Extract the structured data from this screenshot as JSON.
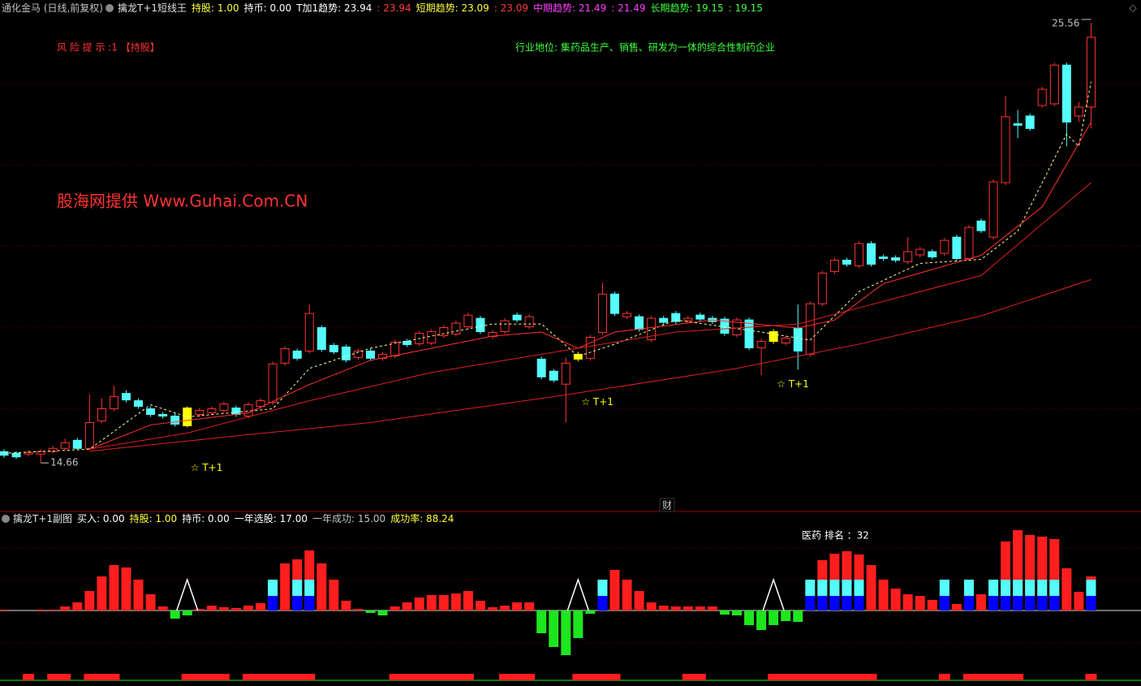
{
  "header": {
    "items": [
      {
        "text": "通化金马 (日线,前复权)",
        "color": "#c0c0c0"
      },
      {
        "text": "擒龙T+1短线王",
        "color": "#e0e0e0"
      },
      {
        "text": "持股: 1.00",
        "color": "#ffff3c"
      },
      {
        "text": "持币: 0.00",
        "color": "#ffffff"
      },
      {
        "text": "T加1趋势: 23.94",
        "color": "#ffffff"
      },
      {
        "text": ": 23.94",
        "color": "#ff3c3c"
      },
      {
        "text": "短期趋势: 23.09",
        "color": "#ffff3c"
      },
      {
        "text": ": 23.09",
        "color": "#ff3c3c"
      },
      {
        "text": "中期趋势: 21.49",
        "color": "#ff3cff"
      },
      {
        "text": ": 21.49",
        "color": "#ff3cff"
      },
      {
        "text": "长期趋势: 19.15",
        "color": "#3cff3c"
      },
      {
        "text": ": 19.15",
        "color": "#3cff3c"
      }
    ]
  },
  "risk": "风 险 提 示 :1 【持股】",
  "industry": "行业地位: 集药品生产、销售、研发为一体的综合性制药企业",
  "watermark": "股海网提供 Www.Guhai.Com.CN",
  "divider_label": "财",
  "sub_header": {
    "items": [
      {
        "text": "擒龙T+1副图",
        "color": "#e0e0e0"
      },
      {
        "text": "买入: 0.00",
        "color": "#ffffff"
      },
      {
        "text": "持股: 1.00",
        "color": "#ffff3c"
      },
      {
        "text": "持币: 0.00",
        "color": "#ffffff"
      },
      {
        "text": "一年选股: 17.00",
        "color": "#ffffff"
      },
      {
        "text": "一年成功: 15.00",
        "color": "#c0c0c0"
      },
      {
        "text": "成功率: 88.24",
        "color": "#ffff3c"
      }
    ]
  },
  "rank": "医药 排名 ：32",
  "chart_data": [
    {
      "type": "candlestick",
      "ylim": [
        13.86,
        25.72
      ],
      "up_color": "#ff3232",
      "down_color": "#54fcfc",
      "highlight_color": "#ffff00",
      "highlight_indices": [
        15,
        47,
        63
      ],
      "max_label": 25.56,
      "min_label": 14.66,
      "annotations": [
        {
          "index": 15,
          "text": "☆ T+1"
        },
        {
          "index": 47,
          "text": "☆ T+1"
        },
        {
          "index": 63,
          "text": "☆ T+1"
        }
      ],
      "ohlc": [
        [
          14.94,
          15.0,
          14.79,
          14.85
        ],
        [
          14.9,
          14.95,
          14.76,
          14.81
        ],
        [
          14.88,
          14.98,
          14.82,
          14.92
        ],
        [
          14.88,
          15.0,
          14.66,
          14.94
        ],
        [
          14.94,
          15.08,
          14.9,
          15.02
        ],
        [
          15.02,
          15.26,
          14.98,
          15.16
        ],
        [
          15.22,
          15.28,
          14.98,
          15.02
        ],
        [
          15.02,
          16.36,
          14.98,
          15.66
        ],
        [
          15.7,
          16.26,
          15.64,
          16.0
        ],
        [
          16.0,
          16.57,
          15.94,
          16.3
        ],
        [
          16.38,
          16.46,
          16.16,
          16.22
        ],
        [
          16.2,
          16.26,
          16.0,
          16.06
        ],
        [
          16.0,
          16.06,
          15.8,
          15.86
        ],
        [
          15.86,
          15.92,
          15.76,
          15.82
        ],
        [
          15.82,
          15.9,
          15.56,
          15.62
        ],
        [
          15.58,
          16.06,
          15.54,
          16.02
        ],
        [
          15.86,
          16.02,
          15.8,
          15.96
        ],
        [
          15.9,
          16.06,
          15.84,
          16.0
        ],
        [
          15.96,
          16.18,
          15.9,
          16.12
        ],
        [
          16.02,
          16.08,
          15.8,
          15.86
        ],
        [
          15.82,
          16.16,
          15.76,
          16.1
        ],
        [
          16.06,
          16.26,
          16.0,
          16.2
        ],
        [
          16.16,
          17.17,
          16.1,
          17.11
        ],
        [
          17.13,
          17.55,
          17.07,
          17.49
        ],
        [
          17.43,
          17.49,
          17.19,
          17.25
        ],
        [
          17.43,
          18.58,
          17.37,
          18.36
        ],
        [
          18.01,
          18.07,
          17.41,
          17.47
        ],
        [
          17.57,
          17.63,
          17.35,
          17.41
        ],
        [
          17.53,
          17.59,
          17.15,
          17.21
        ],
        [
          17.27,
          17.49,
          17.21,
          17.43
        ],
        [
          17.43,
          17.49,
          17.19,
          17.25
        ],
        [
          17.25,
          17.41,
          17.19,
          17.35
        ],
        [
          17.31,
          17.71,
          17.25,
          17.65
        ],
        [
          17.67,
          17.73,
          17.53,
          17.59
        ],
        [
          17.61,
          17.93,
          17.55,
          17.87
        ],
        [
          17.63,
          17.97,
          17.57,
          17.91
        ],
        [
          17.81,
          18.07,
          17.75,
          18.01
        ],
        [
          17.85,
          18.18,
          17.79,
          18.12
        ],
        [
          18.03,
          18.38,
          17.97,
          18.32
        ],
        [
          18.24,
          18.3,
          17.85,
          17.91
        ],
        [
          17.79,
          17.95,
          17.73,
          17.89
        ],
        [
          17.91,
          18.24,
          17.85,
          18.18
        ],
        [
          18.32,
          18.38,
          18.14,
          18.2
        ],
        [
          18.03,
          18.34,
          17.97,
          18.28
        ],
        [
          17.23,
          17.29,
          16.73,
          16.79
        ],
        [
          16.93,
          16.99,
          16.65,
          16.71
        ],
        [
          16.61,
          17.27,
          15.66,
          17.13
        ],
        [
          17.23,
          17.41,
          17.17,
          17.35
        ],
        [
          17.25,
          17.83,
          17.19,
          17.77
        ],
        [
          17.89,
          19.12,
          17.83,
          18.84
        ],
        [
          18.84,
          18.9,
          18.3,
          18.36
        ],
        [
          18.28,
          18.42,
          18.22,
          18.36
        ],
        [
          18.28,
          18.34,
          17.91,
          17.97
        ],
        [
          17.71,
          18.3,
          17.65,
          18.24
        ],
        [
          18.24,
          18.3,
          18.08,
          18.14
        ],
        [
          18.36,
          18.42,
          18.1,
          18.16
        ],
        [
          18.18,
          18.3,
          18.12,
          18.24
        ],
        [
          18.32,
          18.38,
          18.16,
          18.22
        ],
        [
          18.24,
          18.3,
          18.1,
          18.16
        ],
        [
          18.22,
          18.28,
          17.81,
          17.87
        ],
        [
          17.83,
          18.26,
          17.77,
          18.2
        ],
        [
          18.2,
          18.26,
          17.45,
          17.51
        ],
        [
          17.51,
          17.73,
          16.83,
          17.67
        ],
        [
          17.67,
          17.97,
          17.61,
          17.91
        ],
        [
          17.63,
          17.81,
          17.57,
          17.75
        ],
        [
          17.99,
          18.58,
          16.97,
          17.43
        ],
        [
          17.35,
          18.66,
          17.29,
          18.6
        ],
        [
          18.6,
          19.42,
          18.54,
          19.36
        ],
        [
          19.4,
          19.74,
          19.34,
          19.68
        ],
        [
          19.68,
          19.74,
          19.52,
          19.58
        ],
        [
          19.54,
          20.15,
          19.48,
          20.09
        ],
        [
          20.09,
          20.15,
          19.52,
          19.58
        ],
        [
          19.76,
          19.82,
          19.66,
          19.72
        ],
        [
          19.74,
          19.8,
          19.62,
          19.68
        ],
        [
          19.64,
          20.25,
          19.58,
          19.89
        ],
        [
          19.81,
          20.01,
          19.75,
          19.95
        ],
        [
          19.89,
          19.95,
          19.7,
          19.76
        ],
        [
          19.85,
          20.23,
          19.79,
          20.17
        ],
        [
          20.25,
          20.31,
          19.66,
          19.72
        ],
        [
          19.72,
          20.55,
          19.66,
          20.49
        ],
        [
          20.65,
          20.71,
          20.35,
          20.41
        ],
        [
          20.25,
          21.68,
          20.19,
          21.62
        ],
        [
          21.6,
          23.75,
          21.54,
          23.23
        ],
        [
          23.06,
          23.4,
          22.7,
          23.02
        ],
        [
          23.25,
          23.31,
          22.88,
          22.94
        ],
        [
          23.51,
          23.97,
          23.45,
          23.91
        ],
        [
          23.55,
          24.57,
          23.49,
          24.51
        ],
        [
          24.51,
          24.57,
          22.5,
          23.1
        ],
        [
          23.25,
          23.6,
          23.1,
          23.47
        ],
        [
          23.47,
          25.56,
          22.94,
          25.2
        ]
      ],
      "series": [
        {
          "color": "#ffff9a",
          "dashed": true,
          "x": [
            0,
            7,
            12,
            15,
            22,
            25,
            30,
            40,
            44,
            47,
            50,
            55,
            62,
            66,
            70,
            75,
            80,
            83,
            87,
            88,
            89
          ],
          "values": [
            14.9,
            15.0,
            16.1,
            15.8,
            16.0,
            17.0,
            17.5,
            18.1,
            18.1,
            17.3,
            17.6,
            18.2,
            17.9,
            17.7,
            18.9,
            19.6,
            19.7,
            20.4,
            22.8,
            22.5,
            24.1
          ]
        },
        {
          "color": "#ff3232",
          "x": [
            7,
            12,
            20,
            25,
            30,
            40,
            44,
            47,
            50,
            58,
            65,
            68,
            72,
            80,
            85,
            89
          ],
          "values": [
            15.0,
            15.6,
            15.9,
            16.6,
            17.2,
            17.8,
            17.9,
            17.5,
            17.9,
            18.2,
            18.0,
            18.2,
            19.1,
            19.8,
            21.0,
            23.1
          ]
        },
        {
          "color": "#e02020",
          "x": [
            7,
            15,
            25,
            35,
            45,
            55,
            65,
            70,
            80,
            89
          ],
          "values": [
            15.0,
            15.4,
            16.2,
            16.9,
            17.4,
            17.9,
            18.1,
            18.5,
            19.3,
            21.6
          ]
        },
        {
          "color": "#e02020",
          "x": [
            7,
            20,
            30,
            45,
            60,
            70,
            80,
            89
          ],
          "values": [
            14.95,
            15.36,
            15.66,
            16.3,
            17.0,
            17.6,
            18.3,
            19.2
          ]
        }
      ]
    },
    {
      "type": "histogram",
      "ylim": [
        -6,
        10.5
      ],
      "pos_color": "#ff1e1e",
      "neg_color": "#1ee61e",
      "strip_color": "#ff1e1e",
      "values": [
        0.1,
        0,
        0,
        0.1,
        0.1,
        0.5,
        1.0,
        2.4,
        4.2,
        5.6,
        5.3,
        3.8,
        2.0,
        0.5,
        -1.0,
        -0.6,
        0.2,
        0.6,
        0.4,
        0.3,
        0.6,
        0.9,
        3.3,
        5.8,
        6.3,
        7.4,
        5.8,
        3.8,
        1.2,
        0.2,
        -0.3,
        -0.6,
        0.5,
        1.0,
        1.6,
        1.9,
        1.9,
        2.1,
        2.4,
        1.2,
        0.4,
        0.6,
        1.0,
        1.0,
        -2.8,
        -4.5,
        -5.5,
        -3.4,
        -0.4,
        3.8,
        5.0,
        3.8,
        2.4,
        1.0,
        0.6,
        0.5,
        0.5,
        0.5,
        0.5,
        -0.5,
        -0.6,
        -1.8,
        -2.4,
        -1.8,
        -1.3,
        -1.4,
        0.9,
        6.2,
        7.0,
        7.3,
        6.9,
        5.6,
        3.8,
        2.7,
        2.0,
        1.8,
        1.3,
        3.8,
        0.8,
        3.8,
        2.0,
        3.8,
        8.5,
        9.9,
        9.3,
        9.1,
        8.8,
        5.2,
        2.3,
        4.2
      ],
      "signal_indices": [
        22,
        24,
        25,
        49,
        66,
        67,
        68,
        69,
        70,
        77,
        79,
        81,
        82,
        83,
        84,
        85,
        86,
        89
      ],
      "layers": [
        {
          "color": "#0000ff",
          "value": 1.8
        },
        {
          "color": "#54fcfc",
          "value": 3.8
        }
      ],
      "triangle_indices": [
        15,
        47,
        63
      ],
      "triangle_height": 3.8,
      "strip": [
        [
          2,
          2
        ],
        [
          4,
          5
        ],
        [
          7,
          9
        ],
        [
          15,
          18
        ],
        [
          20,
          25
        ],
        [
          32,
          38
        ],
        [
          41,
          43
        ],
        [
          47,
          50
        ],
        [
          56,
          57
        ],
        [
          63,
          71
        ],
        [
          77,
          77
        ],
        [
          79,
          83
        ],
        [
          89,
          89
        ]
      ]
    }
  ]
}
